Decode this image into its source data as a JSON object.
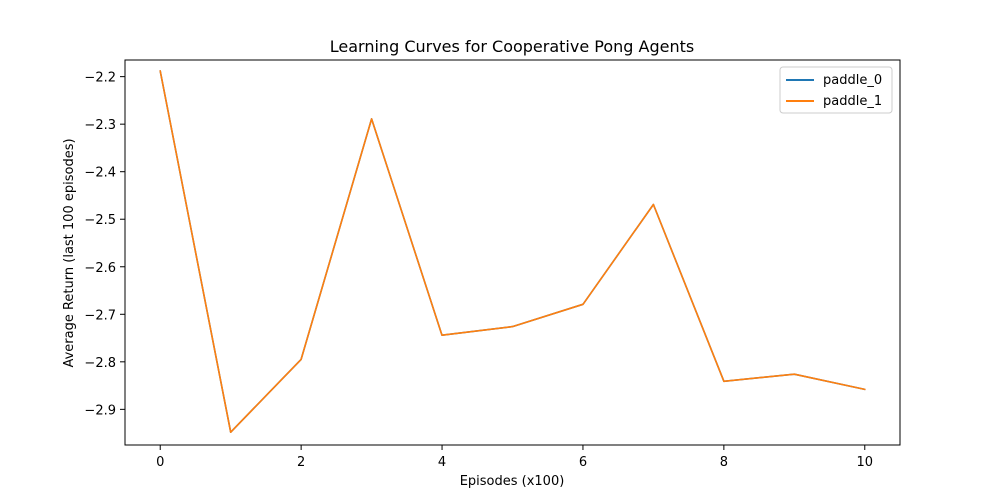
{
  "chart_data": {
    "type": "line",
    "title": "Learning Curves for Cooperative Pong Agents",
    "xlabel": "Episodes (x100)",
    "ylabel": "Average Return (last 100 episodes)",
    "x": [
      0,
      1,
      2,
      3,
      4,
      5,
      6,
      7,
      8,
      9,
      10
    ],
    "xlim": [
      -0.5,
      10.5
    ],
    "ylim": [
      -2.975,
      -2.165
    ],
    "xticks": [
      0,
      2,
      4,
      6,
      8,
      10
    ],
    "yticks": [
      -2.9,
      -2.8,
      -2.7,
      -2.6,
      -2.5,
      -2.4,
      -2.3,
      -2.2
    ],
    "xtick_labels": [
      "0",
      "2",
      "4",
      "6",
      "8",
      "10"
    ],
    "ytick_labels": [
      "−2.9",
      "−2.8",
      "−2.7",
      "−2.6",
      "−2.5",
      "−2.4",
      "−2.3",
      "−2.2"
    ],
    "grid": false,
    "legend_position": "top-right",
    "series": [
      {
        "name": "paddle_0",
        "color": "#1f77b4",
        "values": [
          -2.188,
          -2.948,
          -2.795,
          -2.289,
          -2.744,
          -2.726,
          -2.679,
          -2.469,
          -2.841,
          -2.826,
          -2.858
        ]
      },
      {
        "name": "paddle_1",
        "color": "#ff7f0e",
        "values": [
          -2.188,
          -2.948,
          -2.795,
          -2.289,
          -2.744,
          -2.726,
          -2.679,
          -2.469,
          -2.841,
          -2.826,
          -2.858
        ]
      }
    ]
  }
}
